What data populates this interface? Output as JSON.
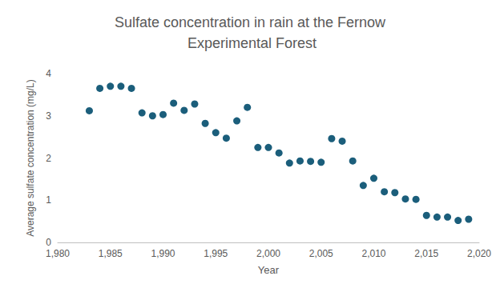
{
  "chart_data": {
    "type": "scatter",
    "title": "Sulfate concentration in rain at the Fernow Experimental Forest",
    "x_label": "Year",
    "y_label": "Average sulfate concentration (mg/L)",
    "x": [
      1983,
      1984,
      1985,
      1986,
      1987,
      1988,
      1989,
      1990,
      1991,
      1992,
      1993,
      1994,
      1995,
      1996,
      1997,
      1998,
      1999,
      2000,
      2001,
      2002,
      2003,
      2004,
      2005,
      2006,
      2007,
      2008,
      2009,
      2010,
      2011,
      2012,
      2013,
      2014,
      2015,
      2016,
      2017,
      2018,
      2019
    ],
    "values": [
      3.12,
      3.65,
      3.7,
      3.7,
      3.65,
      3.07,
      3.0,
      3.03,
      3.3,
      3.13,
      3.28,
      2.82,
      2.6,
      2.47,
      2.88,
      3.2,
      2.25,
      2.25,
      2.12,
      1.88,
      1.93,
      1.92,
      1.9,
      2.46,
      2.4,
      1.93,
      1.35,
      1.52,
      1.2,
      1.18,
      1.03,
      1.02,
      0.64,
      0.6,
      0.6,
      0.52,
      0.55
    ],
    "color": "#1b5e7b",
    "marker": "circle",
    "xlim": [
      1980,
      2020
    ],
    "xticks": [
      1980,
      1985,
      1990,
      1995,
      2000,
      2005,
      2010,
      2015,
      2020
    ],
    "ylim": [
      0,
      4
    ],
    "yticks": [
      0,
      1,
      2,
      3,
      4
    ],
    "grid": false
  }
}
